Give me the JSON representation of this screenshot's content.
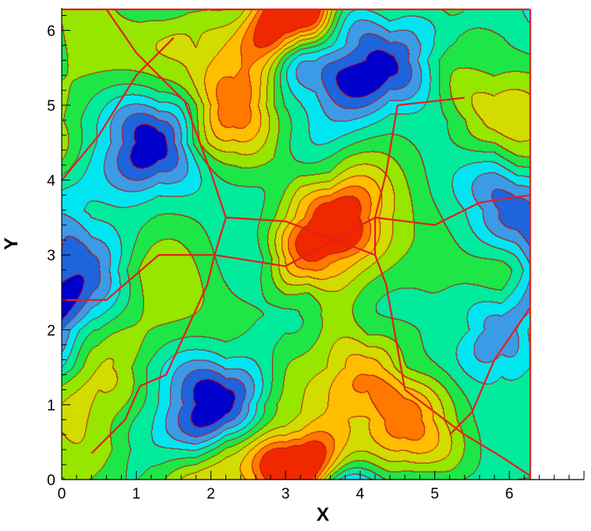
{
  "chart_data": {
    "type": "heatmap",
    "subtype": "filled-contour",
    "title": "",
    "xlabel": "X",
    "ylabel": "Y",
    "xlim": [
      0,
      7
    ],
    "ylim": [
      0,
      6.3
    ],
    "field_domain": {
      "x": [
        0,
        6.283
      ],
      "y": [
        0,
        6.283
      ]
    },
    "x_ticks": [
      0,
      1,
      2,
      3,
      4,
      5,
      6
    ],
    "x_tick_labels": [
      "0",
      "1",
      "2",
      "3",
      "4",
      "5",
      "6"
    ],
    "y_ticks": [
      0,
      1,
      2,
      3,
      4,
      5,
      6
    ],
    "y_tick_labels": [
      "0",
      "1",
      "2",
      "3",
      "4",
      "5",
      "6"
    ],
    "minor_tick_step": 0.2,
    "grid": false,
    "legend": "none",
    "colormap": [
      "#0000cd",
      "#1e64dc",
      "#3c9be6",
      "#00e6f0",
      "#00eb9b",
      "#1ee646",
      "#96e600",
      "#d2dc00",
      "#ffbe00",
      "#ff7800",
      "#f02800"
    ],
    "contour_line_color": "#b41414",
    "shock_line_color": "#e61e1e",
    "field_features": [
      {
        "kind": "peak",
        "x": 3.2,
        "y": 6.3,
        "value": 1.0
      },
      {
        "kind": "peak",
        "x": 3.0,
        "y": 0.0,
        "value": 1.0
      },
      {
        "kind": "peak",
        "x": 3.6,
        "y": 3.5,
        "value": 0.78
      },
      {
        "kind": "peak",
        "x": 3.3,
        "y": 2.95,
        "value": 0.75
      },
      {
        "kind": "peak",
        "x": 2.3,
        "y": 5.0,
        "value": 0.62
      },
      {
        "kind": "peak",
        "x": 4.1,
        "y": 1.5,
        "value": 0.62
      },
      {
        "kind": "peak",
        "x": 1.8,
        "y": 6.2,
        "value": 0.5
      },
      {
        "kind": "peak",
        "x": 4.6,
        "y": 0.8,
        "value": 0.5
      },
      {
        "kind": "peak",
        "x": 0.5,
        "y": 1.5,
        "value": 0.45
      },
      {
        "kind": "peak",
        "x": 5.8,
        "y": 4.8,
        "value": 0.45
      },
      {
        "kind": "trough",
        "x": 3.4,
        "y": 5.8,
        "value": -0.85
      },
      {
        "kind": "trough",
        "x": 4.4,
        "y": 5.6,
        "value": -0.8
      },
      {
        "kind": "trough",
        "x": 2.2,
        "y": 1.0,
        "value": -0.85
      },
      {
        "kind": "trough",
        "x": 1.3,
        "y": 4.5,
        "value": -0.75
      },
      {
        "kind": "trough",
        "x": 5.9,
        "y": 2.0,
        "value": -0.75
      },
      {
        "kind": "trough",
        "x": 0.4,
        "y": 2.8,
        "value": -0.55
      },
      {
        "kind": "trough",
        "x": 6.1,
        "y": 3.6,
        "value": -0.55
      },
      {
        "kind": "trough",
        "x": 3.2,
        "y": 4.3,
        "value": -0.35
      },
      {
        "kind": "trough",
        "x": 3.0,
        "y": 2.2,
        "value": -0.35
      },
      {
        "kind": "trough",
        "x": 1.2,
        "y": 0.4,
        "value": -0.3
      },
      {
        "kind": "trough",
        "x": 5.2,
        "y": 5.9,
        "value": -0.3
      }
    ],
    "shock_lines": [
      [
        [
          1.65,
          5.05
        ],
        [
          2.0,
          4.1
        ],
        [
          2.2,
          3.5
        ],
        [
          2.05,
          3.0
        ],
        [
          1.95,
          2.6
        ],
        [
          1.4,
          1.4
        ],
        [
          1.05,
          1.25
        ]
      ],
      [
        [
          4.5,
          5.0
        ],
        [
          4.35,
          4.1
        ],
        [
          4.2,
          3.5
        ],
        [
          4.2,
          3.0
        ],
        [
          4.35,
          2.6
        ],
        [
          4.6,
          1.2
        ],
        [
          5.4,
          0.6
        ]
      ],
      [
        [
          1.05,
          1.25
        ],
        [
          0.85,
          0.8
        ],
        [
          0.4,
          0.35
        ]
      ],
      [
        [
          4.5,
          5.0
        ],
        [
          5.4,
          5.1
        ]
      ],
      [
        [
          0.0,
          2.4
        ],
        [
          0.6,
          2.4
        ],
        [
          1.3,
          3.0
        ],
        [
          2.05,
          3.0
        ]
      ],
      [
        [
          4.2,
          3.5
        ],
        [
          5.0,
          3.4
        ],
        [
          5.6,
          3.7
        ],
        [
          6.28,
          3.8
        ]
      ],
      [
        [
          0.0,
          4.0
        ],
        [
          0.5,
          4.6
        ],
        [
          1.0,
          5.4
        ],
        [
          1.5,
          5.9
        ]
      ],
      [
        [
          6.28,
          2.3
        ],
        [
          5.8,
          1.6
        ],
        [
          5.5,
          0.9
        ],
        [
          5.2,
          0.6
        ]
      ],
      [
        [
          1.65,
          5.05
        ],
        [
          1.0,
          5.7
        ],
        [
          0.6,
          6.28
        ]
      ],
      [
        [
          5.4,
          0.6
        ],
        [
          5.9,
          0.3
        ],
        [
          6.28,
          0.05
        ]
      ],
      [
        [
          2.2,
          3.5
        ],
        [
          3.0,
          3.45
        ],
        [
          4.2,
          3.0
        ]
      ],
      [
        [
          2.05,
          3.0
        ],
        [
          3.0,
          2.85
        ],
        [
          4.2,
          3.5
        ]
      ],
      [
        [
          0.0,
          6.28
        ],
        [
          6.28,
          6.28
        ]
      ],
      [
        [
          6.28,
          0.0
        ],
        [
          6.28,
          6.28
        ]
      ]
    ]
  }
}
